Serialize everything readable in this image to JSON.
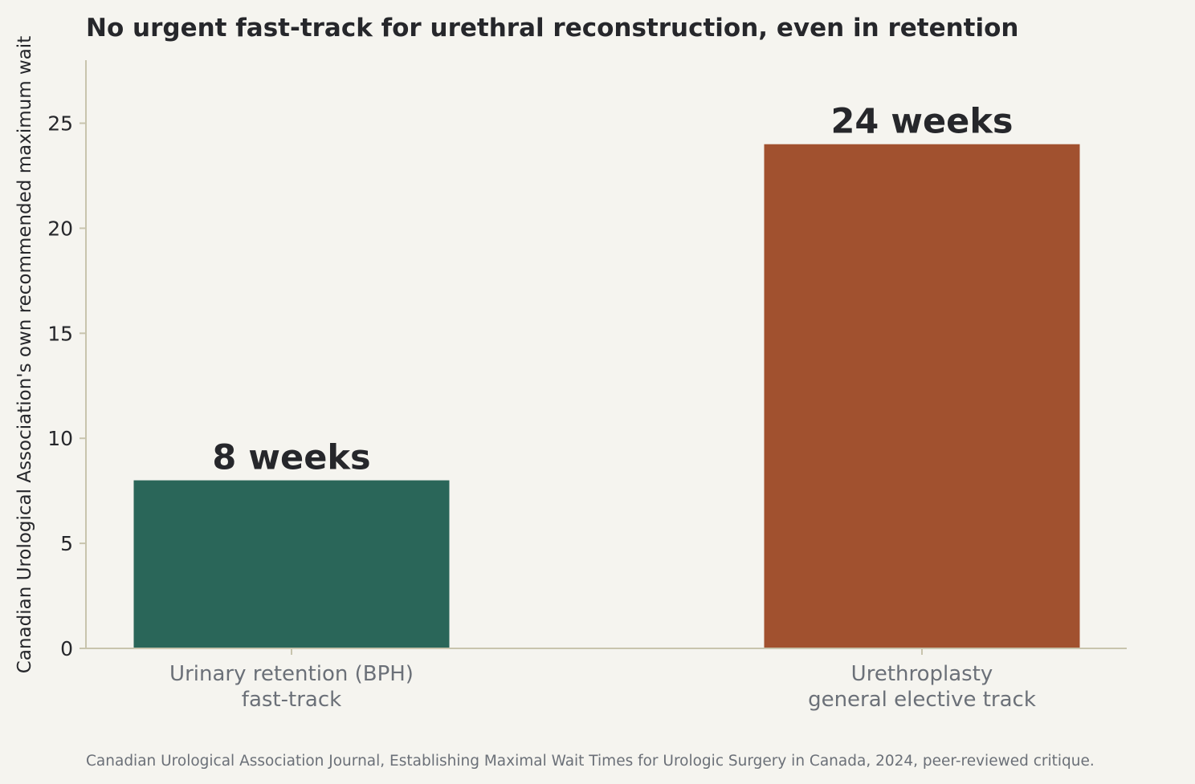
{
  "chart_data": {
    "type": "bar",
    "title": "No urgent fast-track for urethral reconstruction, even in retention",
    "xlabel": "",
    "ylabel": "Canadian Urological Association's own recommended maximum wait",
    "ylim": [
      0,
      28
    ],
    "yticks": [
      0,
      5,
      10,
      15,
      20,
      25
    ],
    "grid": false,
    "bars": [
      {
        "category_lines": [
          "Urinary retention (BPH)",
          "fast-track"
        ],
        "value": 8,
        "value_label": "8 weeks",
        "color": "#2a6659"
      },
      {
        "category_lines": [
          "Urethroplasty",
          "general elective track"
        ],
        "value": 24,
        "value_label": "24 weeks",
        "color": "#a1512f"
      }
    ],
    "source": "Canadian Urological Association Journal, Establishing Maximal Wait Times for Urologic Surgery in Canada, 2024, peer-reviewed critique."
  }
}
